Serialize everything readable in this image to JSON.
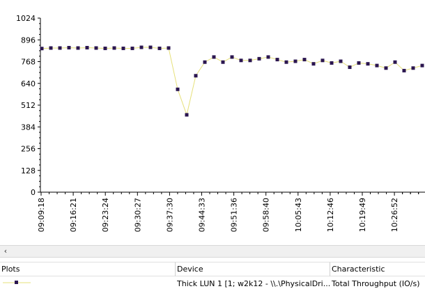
{
  "colors": {
    "line": "#e6e07a",
    "marker": "#2b1650",
    "axis": "#000000"
  },
  "scroll": {
    "left_icon": "‹"
  },
  "legend": {
    "headers": {
      "plots": "Plots",
      "device": "Device",
      "characteristic": "Characteristic"
    },
    "rows": [
      {
        "device": "Thick LUN 1 [1; w2k12 - \\\\.\\PhysicalDri...",
        "characteristic": "Total Throughput (IO/s)"
      }
    ]
  },
  "chart_data": {
    "type": "line",
    "ylim": [
      0,
      1024
    ],
    "yticks": [
      0,
      128,
      256,
      384,
      512,
      640,
      768,
      896,
      1024
    ],
    "ytick_labels": [
      "0",
      "128",
      "256",
      "384",
      "512",
      "640",
      "768",
      "896",
      "1024"
    ],
    "xtick_labels": [
      "09:09:18",
      "09:16:21",
      "09:23:24",
      "09:30:27",
      "09:37:30",
      "09:44:33",
      "09:51:36",
      "09:58:40",
      "10:05:43",
      "10:12:46",
      "10:19:49",
      "10:26:52"
    ],
    "series": [
      {
        "values": [
          845,
          848,
          848,
          850,
          848,
          850,
          848,
          846,
          848,
          846,
          846,
          852,
          852,
          846,
          848,
          605,
          455,
          685,
          765,
          795,
          765,
          795,
          775,
          775,
          785,
          795,
          780,
          765,
          770,
          780,
          755,
          775,
          760,
          770,
          735,
          760,
          755,
          745,
          730,
          765,
          715,
          730,
          745
        ]
      }
    ]
  }
}
